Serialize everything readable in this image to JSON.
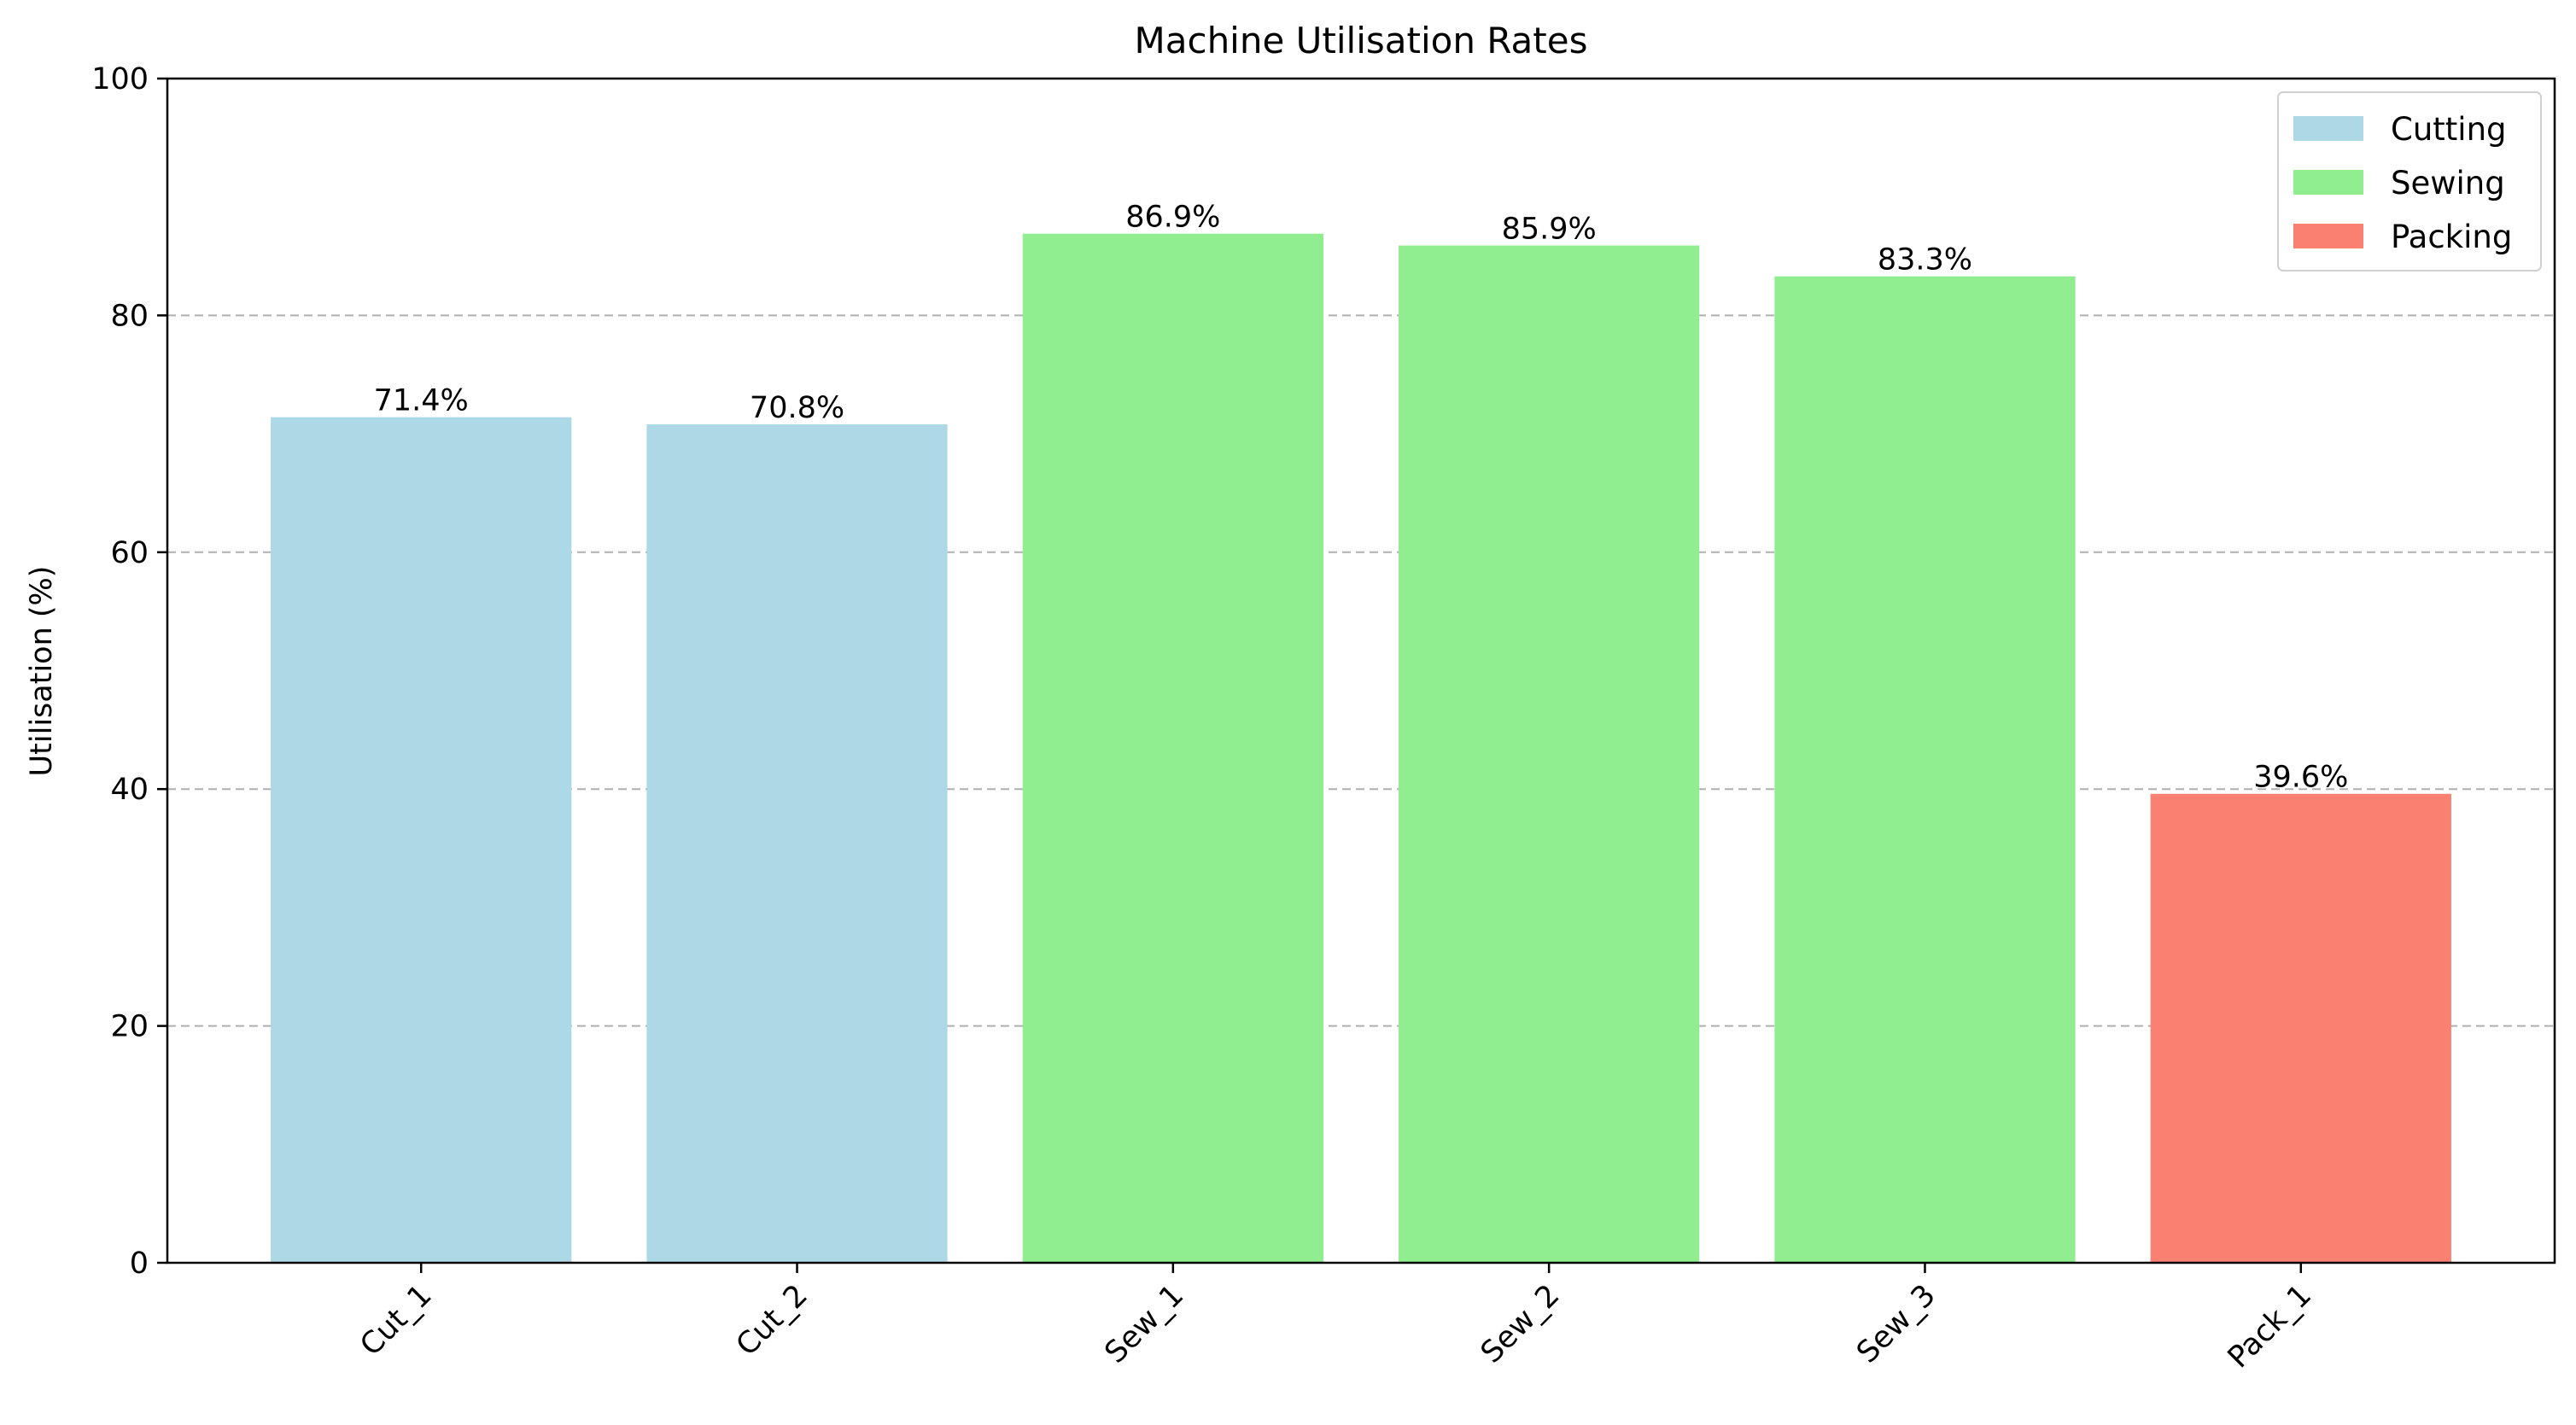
{
  "chart_data": {
    "type": "bar",
    "title": "Machine Utilisation Rates",
    "xlabel": "",
    "ylabel": "Utilisation (%)",
    "ylim": [
      0,
      100
    ],
    "yticks": [
      0,
      20,
      40,
      60,
      80,
      100
    ],
    "grid": "y-dashed",
    "legend_position": "top-right",
    "categories": [
      "Cut_1",
      "Cut_2",
      "Sew_1",
      "Sew_2",
      "Sew_3",
      "Pack_1"
    ],
    "values": [
      71.4,
      70.8,
      86.9,
      85.9,
      83.3,
      39.6
    ],
    "data_labels": [
      "71.4%",
      "70.8%",
      "86.9%",
      "85.9%",
      "83.3%",
      "39.6%"
    ],
    "bar_groups": [
      "Cutting",
      "Cutting",
      "Sewing",
      "Sewing",
      "Sewing",
      "Packing"
    ],
    "legend": [
      {
        "name": "Cutting",
        "color": "#add8e6"
      },
      {
        "name": "Sewing",
        "color": "#90ee90"
      },
      {
        "name": "Packing",
        "color": "#fa8072"
      }
    ]
  }
}
